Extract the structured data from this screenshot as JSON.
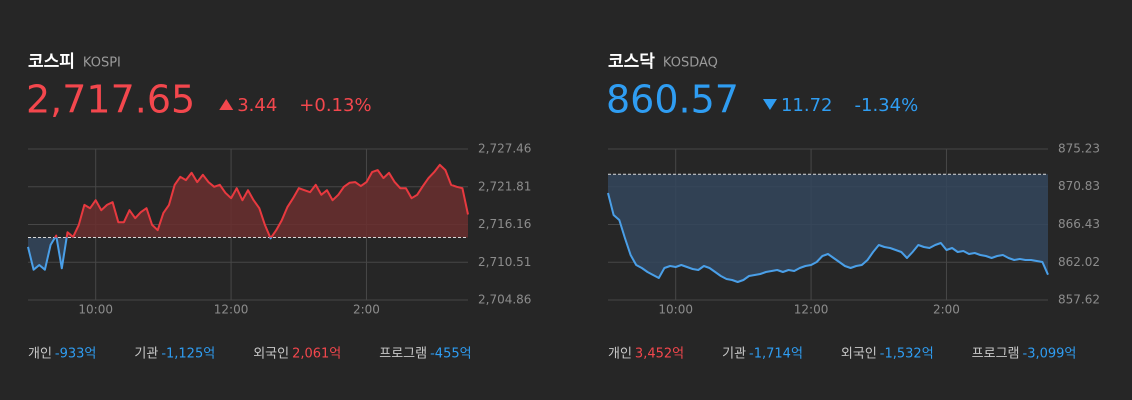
{
  "chart_data": [
    {
      "type": "line",
      "title": "코스피",
      "subtitle": "KOSPI",
      "price": "2,717.65",
      "direction": "up",
      "change": "3.44",
      "change_pct": "+0.13%",
      "colors": {
        "up": "#f3474d",
        "down": "#2f9df2",
        "line_up": "#e8393f",
        "line_down": "#4a9fe8",
        "area_up": "#6a2e2e",
        "area_down": "#33465c"
      },
      "baseline": 2714.21,
      "x": [
        "09:00",
        "09:05",
        "09:10",
        "09:15",
        "09:20",
        "09:25",
        "09:30",
        "09:35",
        "09:40",
        "09:45",
        "09:50",
        "09:55",
        "10:00",
        "10:05",
        "10:10",
        "10:15",
        "10:20",
        "10:25",
        "10:30",
        "10:35",
        "10:40",
        "10:45",
        "10:50",
        "10:55",
        "11:00",
        "11:05",
        "11:10",
        "11:15",
        "11:20",
        "11:25",
        "11:30",
        "11:35",
        "11:40",
        "11:45",
        "11:50",
        "11:55",
        "12:00",
        "12:05",
        "12:10",
        "12:15",
        "12:20",
        "12:25",
        "12:30",
        "12:35",
        "12:40",
        "12:45",
        "12:50",
        "12:55",
        "13:00",
        "13:05",
        "13:10",
        "13:15",
        "13:20",
        "13:25",
        "13:30",
        "13:35",
        "13:40",
        "13:45",
        "13:50",
        "13:55",
        "14:00",
        "14:05",
        "14:10",
        "14:15",
        "14:20",
        "14:25",
        "14:30",
        "14:35",
        "14:40",
        "14:45",
        "14:50",
        "14:55",
        "15:00",
        "15:05",
        "15:10",
        "15:15",
        "15:20",
        "15:25",
        "15:30"
      ],
      "values": [
        2712.8,
        2709.4,
        2710.1,
        2709.4,
        2713.1,
        2714.5,
        2709.6,
        2715.0,
        2714.3,
        2716.1,
        2719.1,
        2718.6,
        2719.8,
        2718.3,
        2719.1,
        2719.5,
        2716.5,
        2716.5,
        2718.3,
        2717.1,
        2718.0,
        2718.6,
        2716.1,
        2715.3,
        2717.9,
        2719.1,
        2722.1,
        2723.3,
        2722.8,
        2723.9,
        2722.5,
        2723.6,
        2722.5,
        2721.8,
        2722.1,
        2720.9,
        2720.1,
        2721.6,
        2719.8,
        2721.3,
        2719.8,
        2718.6,
        2716.1,
        2714.1,
        2715.3,
        2716.8,
        2718.8,
        2720.1,
        2721.6,
        2721.3,
        2721.0,
        2722.1,
        2720.6,
        2721.3,
        2719.8,
        2720.6,
        2721.8,
        2722.4,
        2722.5,
        2721.9,
        2722.5,
        2724.0,
        2724.3,
        2723.1,
        2723.9,
        2722.5,
        2721.6,
        2721.6,
        2720.1,
        2720.6,
        2721.9,
        2723.1,
        2724.0,
        2725.1,
        2724.3,
        2722.1,
        2721.8,
        2721.6,
        2717.65
      ],
      "xlim": [
        "09:00",
        "15:30"
      ],
      "xticks": [
        "10:00",
        "12:00",
        {
          "value": "14:00",
          "label": "2:00"
        }
      ],
      "ylim": [
        2704.86,
        2727.46
      ],
      "yticks": [
        {
          "value": 2727.46,
          "label": "2,727.46"
        },
        {
          "value": 2721.81,
          "label": "2,721.81"
        },
        {
          "value": 2716.16,
          "label": "2,716.16"
        },
        {
          "value": 2710.51,
          "label": "2,710.51"
        },
        {
          "value": 2704.86,
          "label": "2,704.86"
        }
      ],
      "grid": true,
      "investors": [
        {
          "label": "개인",
          "value": "-933억"
        },
        {
          "label": "기관",
          "value": "-1,125억"
        },
        {
          "label": "외국인",
          "value": "2,061억"
        },
        {
          "label": "프로그램",
          "value": "-455억"
        }
      ]
    },
    {
      "type": "line",
      "title": "코스닥",
      "subtitle": "KOSDAQ",
      "price": "860.57",
      "direction": "down",
      "change": "11.72",
      "change_pct": "-1.34%",
      "colors": {
        "up": "#f3474d",
        "down": "#2f9df2",
        "line_up": "#e8393f",
        "line_down": "#4a9fe8",
        "area_up": "#6a2e2e",
        "area_down": "#33465c"
      },
      "baseline": 872.29,
      "x": [
        "09:00",
        "09:05",
        "09:10",
        "09:15",
        "09:20",
        "09:25",
        "09:30",
        "09:35",
        "09:40",
        "09:45",
        "09:50",
        "09:55",
        "10:00",
        "10:05",
        "10:10",
        "10:15",
        "10:20",
        "10:25",
        "10:30",
        "10:35",
        "10:40",
        "10:45",
        "10:50",
        "10:55",
        "11:00",
        "11:05",
        "11:10",
        "11:15",
        "11:20",
        "11:25",
        "11:30",
        "11:35",
        "11:40",
        "11:45",
        "11:50",
        "11:55",
        "12:00",
        "12:05",
        "12:10",
        "12:15",
        "12:20",
        "12:25",
        "12:30",
        "12:35",
        "12:40",
        "12:45",
        "12:50",
        "12:55",
        "13:00",
        "13:05",
        "13:10",
        "13:15",
        "13:20",
        "13:25",
        "13:30",
        "13:35",
        "13:40",
        "13:45",
        "13:50",
        "13:55",
        "14:00",
        "14:05",
        "14:10",
        "14:15",
        "14:20",
        "14:25",
        "14:30",
        "14:35",
        "14:40",
        "14:45",
        "14:50",
        "14:55",
        "15:00",
        "15:05",
        "15:10",
        "15:15",
        "15:20",
        "15:25",
        "15:30"
      ],
      "values": [
        870.1,
        867.53,
        866.95,
        864.85,
        862.87,
        861.7,
        861.35,
        860.89,
        860.54,
        860.19,
        861.35,
        861.59,
        861.47,
        861.7,
        861.47,
        861.24,
        861.12,
        861.59,
        861.35,
        860.89,
        860.42,
        860.07,
        859.95,
        859.72,
        859.95,
        860.42,
        860.54,
        860.65,
        860.89,
        861.0,
        861.12,
        860.89,
        861.12,
        861.0,
        861.35,
        861.59,
        861.7,
        862.05,
        862.75,
        862.99,
        862.52,
        862.05,
        861.59,
        861.35,
        861.59,
        861.7,
        862.29,
        863.22,
        864.04,
        863.8,
        863.68,
        863.45,
        863.22,
        862.52,
        863.22,
        864.04,
        863.8,
        863.68,
        864.04,
        864.27,
        863.45,
        863.68,
        863.22,
        863.34,
        862.99,
        863.1,
        862.87,
        862.75,
        862.52,
        862.75,
        862.87,
        862.52,
        862.29,
        862.4,
        862.29,
        862.29,
        862.17,
        862.05,
        860.57
      ],
      "xlim": [
        "09:00",
        "15:30"
      ],
      "xticks": [
        "10:00",
        "12:00",
        {
          "value": "14:00",
          "label": "2:00"
        }
      ],
      "ylim": [
        857.62,
        875.23
      ],
      "yticks": [
        875.23,
        870.83,
        866.43,
        862.02,
        857.62
      ],
      "grid": true,
      "investors": [
        {
          "label": "개인",
          "value": "3,452억"
        },
        {
          "label": "기관",
          "value": "-1,714억"
        },
        {
          "label": "외국인",
          "value": "-1,532억"
        },
        {
          "label": "프로그램",
          "value": "-3,099억"
        }
      ]
    }
  ]
}
